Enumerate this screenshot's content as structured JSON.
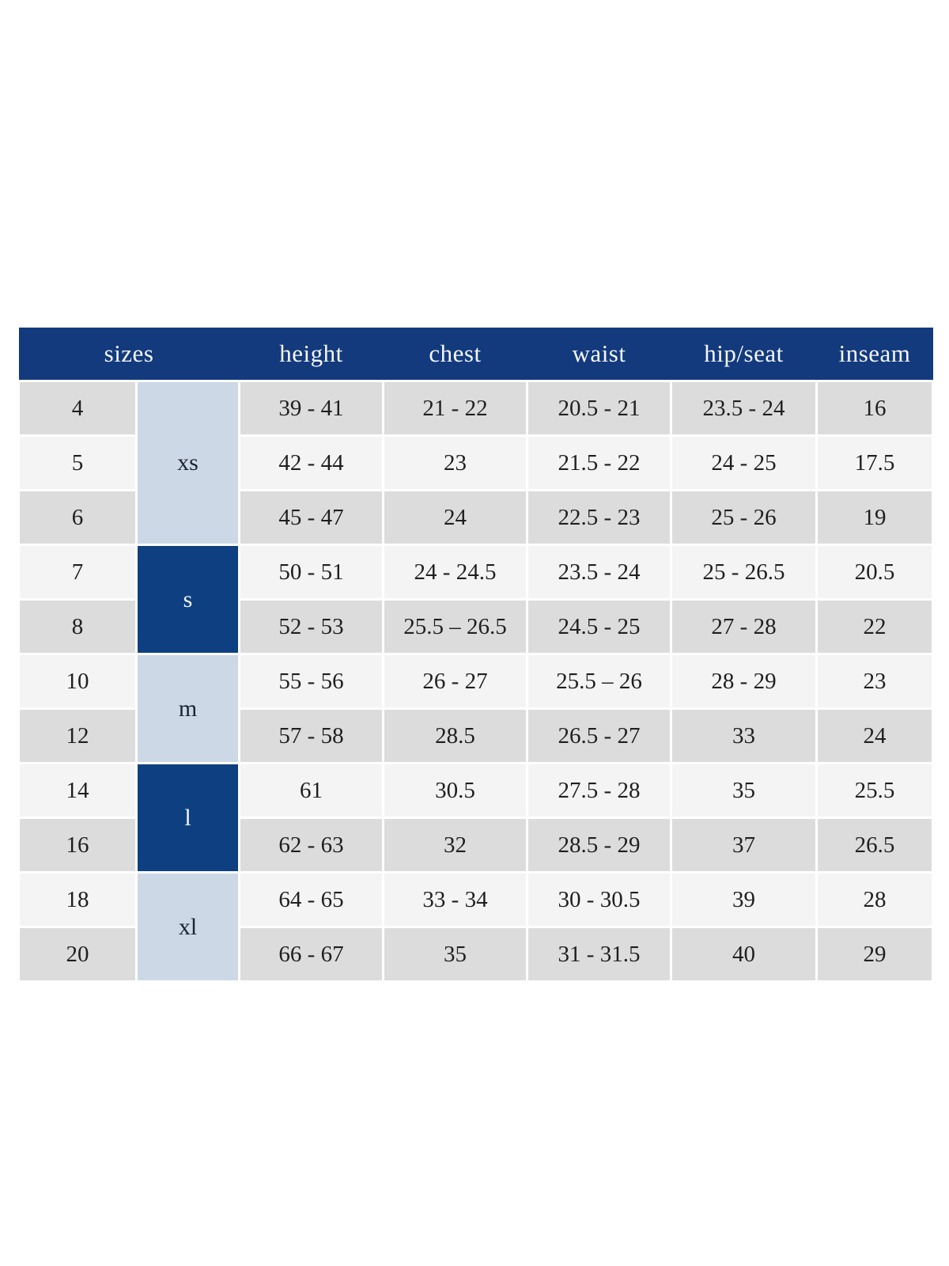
{
  "style": {
    "page_bg": "#ffffff",
    "header_bg": "#133a7c",
    "header_text": "#f4f7fb",
    "group_dark_bg": "#0e4081",
    "group_light_bg": "#ccd8e6",
    "group_light_text": "#1c2430",
    "row_gray": "#dcdcdc",
    "row_light": "#f4f4f4",
    "cell_text": "#1f1f1f"
  },
  "chart_data": {
    "type": "table",
    "title": "",
    "columns": [
      "sizes",
      "height",
      "chest",
      "waist",
      "hip/seat",
      "inseam"
    ],
    "groups": [
      {
        "size_label": "xs",
        "shade": "light",
        "rows": [
          {
            "size": "4",
            "height": "39 - 41",
            "chest": "21 - 22",
            "waist": "20.5 - 21",
            "hip_seat": "23.5 - 24",
            "inseam": "16"
          },
          {
            "size": "5",
            "height": "42 - 44",
            "chest": "23",
            "waist": "21.5 - 22",
            "hip_seat": "24 - 25",
            "inseam": "17.5"
          },
          {
            "size": "6",
            "height": "45 - 47",
            "chest": "24",
            "waist": "22.5 - 23",
            "hip_seat": "25 - 26",
            "inseam": "19"
          }
        ]
      },
      {
        "size_label": "s",
        "shade": "dark",
        "rows": [
          {
            "size": "7",
            "height": "50 - 51",
            "chest": "24 - 24.5",
            "waist": "23.5 - 24",
            "hip_seat": "25 - 26.5",
            "inseam": "20.5"
          },
          {
            "size": "8",
            "height": "52 - 53",
            "chest": "25.5 – 26.5",
            "waist": "24.5 - 25",
            "hip_seat": "27 - 28",
            "inseam": "22"
          }
        ]
      },
      {
        "size_label": "m",
        "shade": "light",
        "rows": [
          {
            "size": "10",
            "height": "55 - 56",
            "chest": "26 - 27",
            "waist": "25.5 – 26",
            "hip_seat": "28 - 29",
            "inseam": "23"
          },
          {
            "size": "12",
            "height": "57 - 58",
            "chest": "28.5",
            "waist": "26.5 - 27",
            "hip_seat": "33",
            "inseam": "24"
          }
        ]
      },
      {
        "size_label": "l",
        "shade": "dark",
        "rows": [
          {
            "size": "14",
            "height": "61",
            "chest": "30.5",
            "waist": "27.5 - 28",
            "hip_seat": "35",
            "inseam": "25.5"
          },
          {
            "size": "16",
            "height": "62 - 63",
            "chest": "32",
            "waist": "28.5 - 29",
            "hip_seat": "37",
            "inseam": "26.5"
          }
        ]
      },
      {
        "size_label": "xl",
        "shade": "light",
        "rows": [
          {
            "size": "18",
            "height": "64 - 65",
            "chest": "33 - 34",
            "waist": "30 - 30.5",
            "hip_seat": "39",
            "inseam": "28"
          },
          {
            "size": "20",
            "height": "66 - 67",
            "chest": "35",
            "waist": "31 - 31.5",
            "hip_seat": "40",
            "inseam": "29"
          }
        ]
      }
    ]
  }
}
